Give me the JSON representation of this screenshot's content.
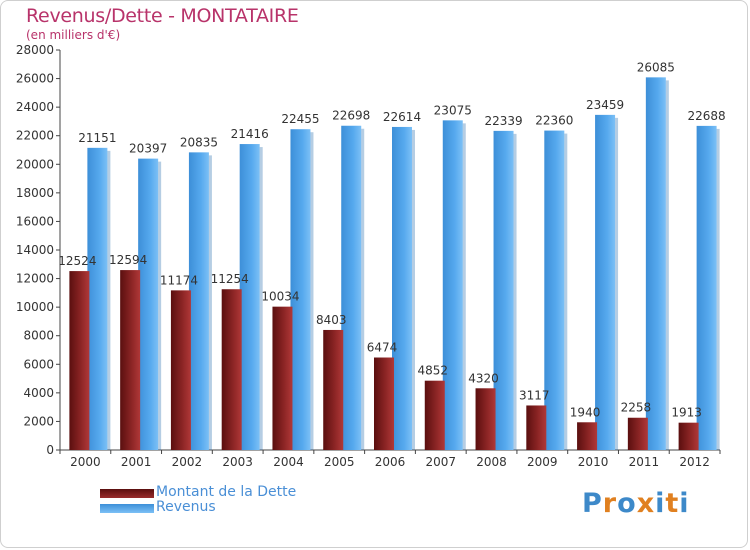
{
  "header": {
    "title": "Revenus/Dette - MONTATAIRE",
    "subtitle": "(en milliers d'€)"
  },
  "logo": {
    "text": "Proxiti",
    "letters": [
      "P",
      "r",
      "o",
      "x",
      "i",
      "t",
      "i"
    ]
  },
  "colors": {
    "debt": "#7a1a1a",
    "debt_light": "#b03838",
    "revenue": "#4a9ee6",
    "revenue_light": "#6cb8f4",
    "logo": [
      "#3d89c9",
      "#e08020",
      "#3d89c9",
      "#e08020",
      "#3d89c9",
      "#e08020",
      "#3d89c9"
    ]
  },
  "chart_data": {
    "type": "bar",
    "title": "Revenus/Dette - MONTATAIRE",
    "ylabel": "(en milliers d'€)",
    "xlabel": "",
    "ylim": [
      0,
      28000
    ],
    "yticks": [
      0,
      2000,
      4000,
      6000,
      8000,
      10000,
      12000,
      14000,
      16000,
      18000,
      20000,
      22000,
      24000,
      26000,
      28000
    ],
    "grid": false,
    "legend_position": "bottom-left",
    "categories": [
      "2000",
      "2001",
      "2002",
      "2003",
      "2004",
      "2005",
      "2006",
      "2007",
      "2008",
      "2009",
      "2010",
      "2011",
      "2012"
    ],
    "series": [
      {
        "name": "Montant de la Dette",
        "values": [
          12524,
          12594,
          11174,
          11254,
          10034,
          8403,
          6474,
          4852,
          4320,
          3117,
          1940,
          2258,
          1913
        ],
        "labels": [
          "12524",
          "12594",
          "11174",
          "11254",
          "10034",
          "8403",
          "6474",
          "4852",
          "4320",
          "3117",
          "1940",
          "2258",
          "1913"
        ]
      },
      {
        "name": "Revenus",
        "values": [
          21151,
          20397,
          20835,
          21416,
          22455,
          22698,
          22614,
          23075,
          22339,
          22360,
          23459,
          26085,
          22688
        ],
        "labels": [
          "21151",
          "20397",
          "20835",
          "21416",
          "22455",
          "22698",
          "22614",
          "23075",
          "22339",
          "22360",
          "23459",
          "26085",
          "22688"
        ]
      }
    ]
  }
}
